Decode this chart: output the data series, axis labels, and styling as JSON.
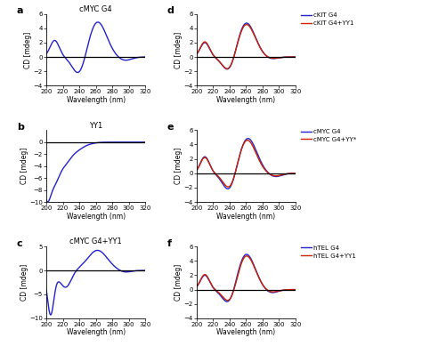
{
  "title_a": "cMYC G4",
  "title_b": "YY1",
  "title_c": "cMYC G4+YY1",
  "panel_labels": [
    "a",
    "b",
    "c",
    "d",
    "e",
    "f"
  ],
  "xlabel": "Wavelength (nm)",
  "ylabel": "CD [mdeg]",
  "xlim": [
    200,
    320
  ],
  "xticks": [
    200,
    220,
    240,
    260,
    280,
    300,
    320
  ],
  "blue_color": "#2222cc",
  "red_color": "#cc2200",
  "legend_d": [
    "cKIT G4",
    "cKIT G4+YY1"
  ],
  "legend_e": [
    "cMYC G4",
    "cMYC G4+YY*"
  ],
  "legend_f": [
    "hTEL G4",
    "hTEL G4+YY1"
  ],
  "ylim_abc": [
    -4,
    6
  ],
  "yticks_a": [
    -4,
    -2,
    0,
    2,
    4,
    6
  ],
  "ylim_b": [
    -10,
    2
  ],
  "yticks_b": [
    -10,
    -8,
    -6,
    -4,
    -2,
    0
  ],
  "ylim_c": [
    -10,
    5
  ],
  "yticks_c": [
    -10,
    -5,
    0,
    5
  ],
  "ylim_def": [
    -4,
    6
  ],
  "yticks_def": [
    -4,
    -2,
    0,
    2,
    4,
    6
  ]
}
